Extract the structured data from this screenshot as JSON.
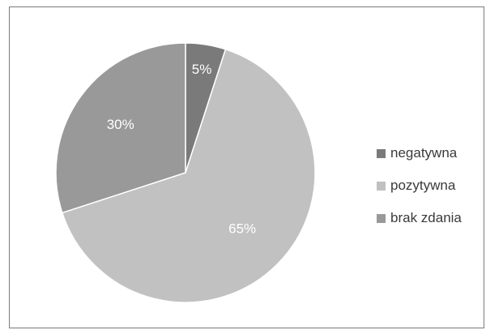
{
  "chart_data": {
    "type": "pie",
    "title": "",
    "slices": [
      {
        "label": "negatywna",
        "value": 5,
        "display": "5%",
        "color": "#7a7a7a"
      },
      {
        "label": "pozytywna",
        "value": 65,
        "display": "65%",
        "color": "#c1c1c1"
      },
      {
        "label": "brak zdania",
        "value": 30,
        "display": "30%",
        "color": "#999999"
      }
    ],
    "legend_position": "right",
    "start_angle": "12 o'clock, clockwise"
  }
}
